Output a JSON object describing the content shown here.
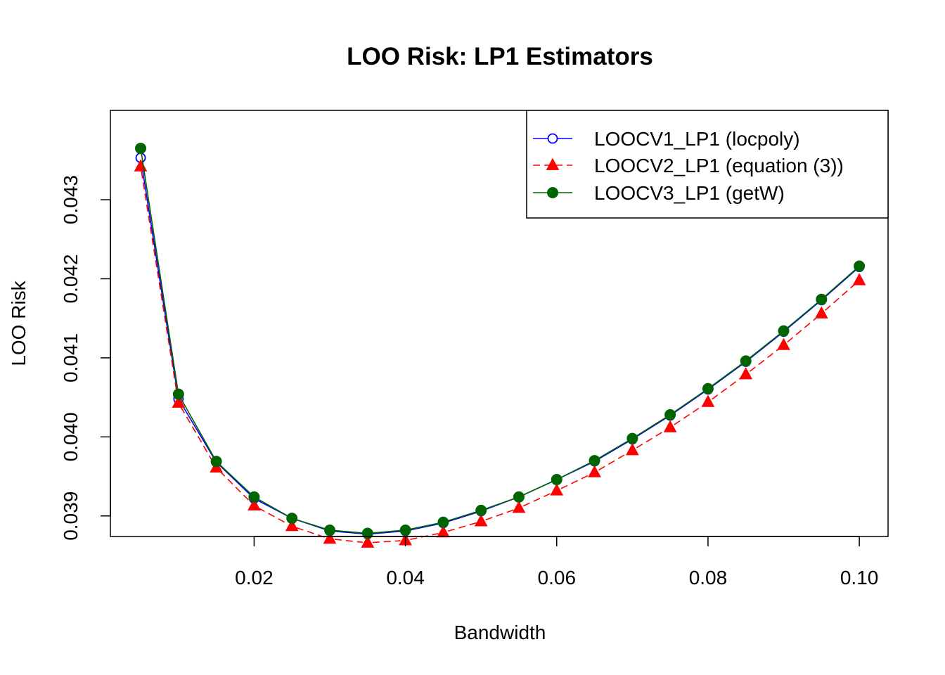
{
  "chart_data": {
    "type": "line",
    "title": "LOO Risk: LP1 Estimators",
    "xlabel": "Bandwidth",
    "ylabel": "LOO Risk",
    "x": [
      0.005,
      0.01,
      0.015,
      0.02,
      0.025,
      0.03,
      0.035,
      0.04,
      0.045,
      0.05,
      0.055,
      0.06,
      0.065,
      0.07,
      0.075,
      0.08,
      0.085,
      0.09,
      0.095,
      0.1
    ],
    "xlim": [
      0.001,
      0.1038
    ],
    "ylim": [
      0.03874,
      0.04413
    ],
    "xticks": [
      0.02,
      0.04,
      0.06,
      0.08,
      0.1
    ],
    "xtick_labels": [
      "0.02",
      "0.04",
      "0.06",
      "0.08",
      "0.10"
    ],
    "yticks": [
      0.039,
      0.04,
      0.041,
      0.042,
      0.043
    ],
    "ytick_labels": [
      "0.039",
      "0.040",
      "0.041",
      "0.042",
      "0.043"
    ],
    "legend_position": "top-right",
    "grid": false,
    "series": [
      {
        "name": "LOOCV1_LP1 (locpoly)",
        "color": "#0000ff",
        "marker": "open-circle",
        "line": "solid",
        "values": [
          0.04353,
          0.04048,
          0.03968,
          0.03922,
          0.03897,
          0.03881,
          0.03877,
          0.03881,
          0.03891,
          0.03906,
          0.03924,
          0.03946,
          0.03969,
          0.03997,
          0.04027,
          0.0406,
          0.04095,
          0.04133,
          0.04173,
          0.04215
        ]
      },
      {
        "name": "LOOCV2_LP1 (equation (3))",
        "color": "#ff0000",
        "marker": "filled-triangle",
        "line": "dashed",
        "values": [
          0.04342,
          0.04043,
          0.03961,
          0.03913,
          0.03887,
          0.03871,
          0.03866,
          0.03869,
          0.03879,
          0.03893,
          0.0391,
          0.03932,
          0.03955,
          0.03983,
          0.04012,
          0.04044,
          0.04079,
          0.04116,
          0.04156,
          0.04198
        ]
      },
      {
        "name": "LOOCV3_LP1 (getW)",
        "color": "#006400",
        "marker": "filled-circle",
        "line": "solid",
        "values": [
          0.04365,
          0.04054,
          0.03969,
          0.03924,
          0.03897,
          0.03882,
          0.03878,
          0.03882,
          0.03892,
          0.03907,
          0.03924,
          0.03946,
          0.0397,
          0.03998,
          0.04028,
          0.04061,
          0.04096,
          0.04134,
          0.04174,
          0.04216
        ]
      }
    ]
  }
}
